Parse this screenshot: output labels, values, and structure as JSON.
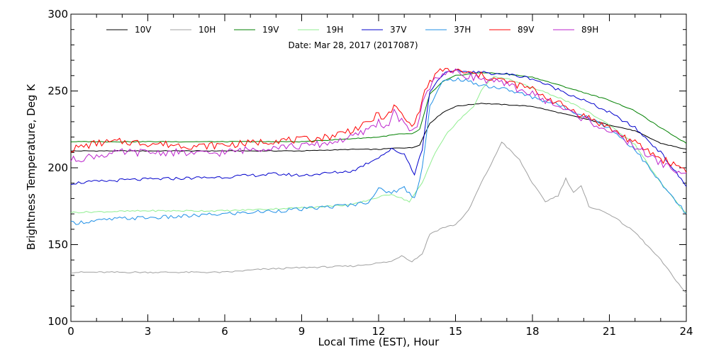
{
  "chart_data": {
    "type": "line",
    "subtitle": "Date: Mar 28, 2017 (2017087)",
    "xlabel": "Local Time (EST), Hour",
    "ylabel": "Brightness Temperature, Deg K",
    "xlim": [
      0,
      24
    ],
    "ylim": [
      100,
      300
    ],
    "xticks": [
      0,
      3,
      6,
      9,
      12,
      15,
      18,
      21,
      24
    ],
    "yticks": [
      100,
      150,
      200,
      250,
      300
    ],
    "grid": false,
    "legend_position": "top",
    "series": [
      {
        "name": "10V",
        "color": "#000000",
        "x": [
          0,
          3,
          6,
          9,
          11,
          12,
          12.8,
          13.3,
          13.6,
          14,
          14.5,
          15,
          15.5,
          16,
          17,
          18,
          19,
          20,
          21,
          22,
          23,
          24
        ],
        "y": [
          211,
          211,
          211,
          211,
          212,
          212,
          213,
          213,
          215,
          229,
          236,
          240,
          241,
          242,
          241,
          240,
          236,
          232,
          228,
          224,
          216,
          212
        ]
      },
      {
        "name": "10H",
        "color": "#a0a0a0",
        "x": [
          0,
          3,
          6,
          7.5,
          9,
          11,
          12,
          12.5,
          12.9,
          13.3,
          13.7,
          14,
          14.5,
          15,
          15.5,
          16,
          16.5,
          16.8,
          17.5,
          18,
          18.5,
          19,
          19.3,
          19.6,
          19.9,
          20.2,
          21,
          22,
          23,
          24
        ],
        "y": [
          132,
          132,
          132,
          134,
          135,
          136,
          138,
          139,
          143,
          139,
          144,
          157,
          161,
          163,
          172,
          190,
          206,
          217,
          205,
          190,
          178,
          182,
          193,
          184,
          188,
          175,
          170,
          158,
          140,
          118
        ]
      },
      {
        "name": "19V",
        "color": "#008000",
        "x": [
          0,
          3,
          6,
          9,
          11,
          12,
          12.8,
          13.3,
          13.6,
          14,
          14.5,
          15,
          15.5,
          16,
          17,
          18,
          19,
          20,
          21,
          22,
          23,
          24
        ],
        "y": [
          217,
          217,
          217,
          217,
          219,
          220,
          222,
          222,
          225,
          248,
          256,
          260,
          261,
          262,
          261,
          259,
          254,
          249,
          244,
          237,
          226,
          216
        ]
      },
      {
        "name": "19H",
        "color": "#90ee90",
        "x": [
          0,
          3,
          6,
          9,
          11,
          11.8,
          12.5,
          13.2,
          13.7,
          14.2,
          14.7,
          15.2,
          15.7,
          16.1,
          16.5,
          17,
          18,
          19,
          20,
          21,
          22,
          23,
          24
        ],
        "y": [
          171,
          172,
          172,
          174,
          176,
          180,
          183,
          178,
          190,
          210,
          223,
          232,
          240,
          253,
          259,
          258,
          252,
          246,
          238,
          228,
          215,
          190,
          170
        ]
      },
      {
        "name": "37V",
        "color": "#0000cc",
        "x": [
          0,
          2,
          4,
          6,
          8,
          9,
          11,
          12,
          12.5,
          13,
          13.4,
          13.7,
          14,
          14.5,
          15,
          16,
          17,
          18,
          19,
          20,
          21,
          22,
          23,
          24
        ],
        "y": [
          190,
          192,
          193,
          194,
          196,
          195,
          198,
          207,
          212,
          209,
          196,
          212,
          250,
          261,
          263,
          262,
          261,
          258,
          251,
          244,
          236,
          226,
          210,
          188
        ]
      },
      {
        "name": "37H",
        "color": "#1f8fe6",
        "x": [
          0,
          2,
          4,
          6,
          8,
          9,
          11,
          11.6,
          12,
          12.5,
          13,
          13.4,
          13.7,
          14,
          14.5,
          15,
          16,
          17,
          18,
          19,
          20,
          21,
          22,
          23,
          24
        ],
        "y": [
          164,
          167,
          168,
          170,
          172,
          173,
          176,
          178,
          186,
          184,
          187,
          180,
          200,
          240,
          256,
          258,
          254,
          251,
          246,
          241,
          234,
          226,
          212,
          190,
          170
        ]
      },
      {
        "name": "89V",
        "color": "#ff0000",
        "x": [
          0,
          1,
          2,
          3,
          4,
          5,
          6,
          7,
          8,
          9,
          10,
          11,
          11.5,
          12,
          12.3,
          12.6,
          12.9,
          13.2,
          13.5,
          13.8,
          14.1,
          14.5,
          15,
          16,
          17,
          18,
          19,
          20,
          21,
          22,
          23,
          24
        ],
        "y": [
          212,
          216,
          217,
          216,
          215,
          214,
          215,
          216,
          218,
          218,
          220,
          225,
          228,
          235,
          232,
          240,
          235,
          228,
          232,
          250,
          258,
          264,
          263,
          260,
          256,
          251,
          242,
          234,
          226,
          216,
          206,
          199
        ]
      },
      {
        "name": "89H",
        "color": "#bb22cc",
        "x": [
          0,
          1,
          2,
          3,
          4,
          5,
          6,
          7,
          8,
          9,
          10,
          11,
          11.5,
          12,
          12.3,
          12.6,
          12.9,
          13.2,
          13.5,
          13.8,
          14.1,
          14.5,
          15,
          16,
          17,
          18,
          19,
          20,
          21,
          22,
          23,
          24
        ],
        "y": [
          205,
          208,
          210,
          210,
          210,
          209,
          210,
          212,
          214,
          214,
          216,
          220,
          224,
          230,
          226,
          236,
          230,
          224,
          228,
          246,
          256,
          262,
          262,
          258,
          254,
          248,
          240,
          232,
          224,
          214,
          203,
          195
        ]
      }
    ]
  }
}
